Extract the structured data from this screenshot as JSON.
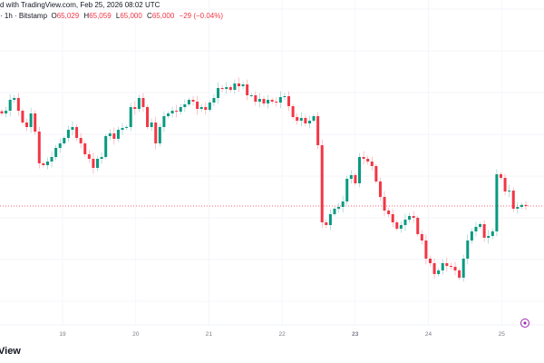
{
  "header": {
    "snapshot_line": "d with TradingView.com, Feb 25, 2026 08:02 UTC",
    "symbol_line": "· 1h · Bitstamp",
    "open_label": "O",
    "open_value": "65,029",
    "high_label": "H",
    "high_value": "65,059",
    "low_label": "L",
    "low_value": "65,000",
    "close_label": "C",
    "close_value": "65,000",
    "change": "−29 (−0.04%)"
  },
  "brand": "View",
  "colors": {
    "up": "#089981",
    "down": "#f23645",
    "grid": "#f0f3fa",
    "price_line": "#f23645",
    "icon": "#9c27b0"
  },
  "chart_data": {
    "type": "candlestick",
    "interval": "1h",
    "exchange": "Bitstamp",
    "x_tick_labels": [
      "19",
      "20",
      "21",
      "22",
      "23",
      "24",
      "25"
    ],
    "bold_tick": "23",
    "ylim": [
      60675,
      70675
    ],
    "last_price": 65000,
    "closes": [
      67550,
      67625,
      67925,
      67975,
      67625,
      67300,
      67175,
      67550,
      67050,
      66175,
      66125,
      66225,
      66350,
      66600,
      66725,
      66875,
      67100,
      67175,
      66875,
      66725,
      66425,
      66300,
      66050,
      66300,
      66350,
      66925,
      67000,
      66850,
      67100,
      67150,
      67175,
      67725,
      67675,
      67975,
      67725,
      67175,
      67300,
      66725,
      67175,
      67475,
      67550,
      67625,
      67600,
      67725,
      67800,
      67925,
      67875,
      67675,
      67725,
      67650,
      67850,
      67975,
      68250,
      68225,
      68275,
      68200,
      68375,
      68300,
      68350,
      68050,
      68050,
      67875,
      67950,
      67825,
      67925,
      67875,
      67850,
      68000,
      68025,
      67750,
      67450,
      67350,
      67425,
      67275,
      67350,
      67475,
      66675,
      64550,
      64475,
      64775,
      64925,
      64975,
      65125,
      65750,
      65850,
      65625,
      66350,
      66300,
      66225,
      66100,
      65675,
      65250,
      64875,
      64775,
      64550,
      64375,
      64475,
      64625,
      64725,
      64675,
      64225,
      64050,
      63550,
      63425,
      63125,
      63225,
      63425,
      63350,
      63325,
      63225,
      63025,
      63550,
      64050,
      64300,
      64425,
      64500,
      64125,
      64175,
      64300,
      65875,
      65775,
      65400,
      65425,
      64925,
      64975,
      65029,
      65000
    ]
  }
}
